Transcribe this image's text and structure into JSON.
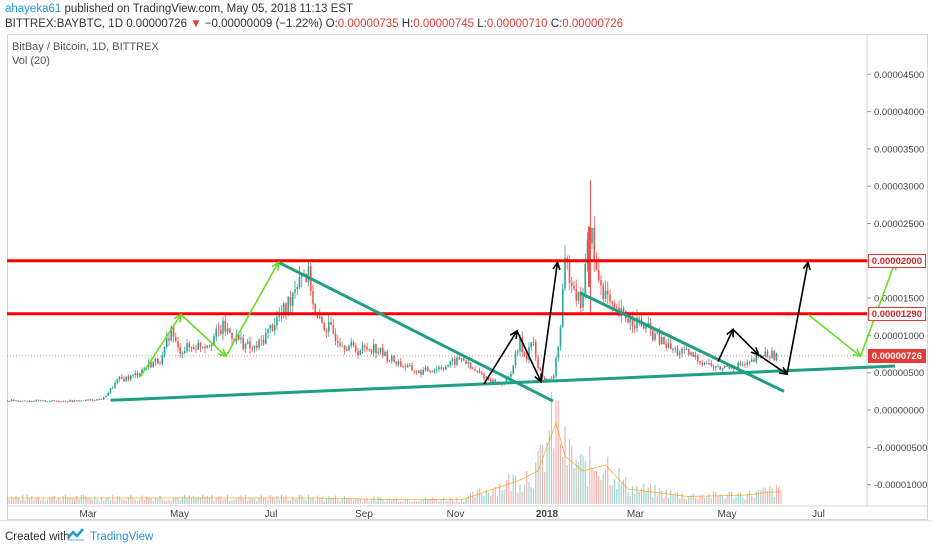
{
  "header": {
    "author": "ahayeka61",
    "published": "published on TradingView.com, May 05, 2018 11:13 EST",
    "symbol": "BITTREX:BAYBTC, 1D",
    "last": "0.00000726",
    "arrow": "▼",
    "change": "−0.00000009 (−1.22%)",
    "o_label": "O:",
    "o_val": "0.00000735",
    "h_label": "H:",
    "h_val": "0.00000745",
    "l_label": "L:",
    "l_val": "0.00000710",
    "c_label": "C:",
    "c_val": "0.00000726"
  },
  "legend": {
    "title": "BitBay / Bitcoin, 1D, BITTREX",
    "volume": "Vol (20)"
  },
  "footer": {
    "created": "Created with",
    "brand": "TradingView"
  },
  "colors": {
    "up": "#26a69a",
    "down": "#ef5350",
    "resistance": "#ff0000",
    "trendline": "#1fa083",
    "green_arrow": "#66dd22",
    "black_arrow": "#000000",
    "tag": "#e53935"
  },
  "chart_data": {
    "type": "candlestick",
    "title": "BitBay / Bitcoin, 1D, BITTREX",
    "y_axis": {
      "min": -1.2e-06,
      "max": 4.8e-06,
      "ticks": [
        "0.00004500",
        "0.00004000",
        "0.00003500",
        "0.00003000",
        "0.00002500",
        "0.00002000",
        "0.00001500",
        "0.00001000",
        "0.00000500",
        "0.00000000",
        "-0.00000500",
        "-0.00001000"
      ],
      "tick_values": [
        4.5e-05,
        4e-05,
        3.5e-05,
        3e-05,
        2.5e-05,
        2e-05,
        1.5e-05,
        1e-05,
        5e-06,
        0,
        -5e-06,
        -1e-05
      ]
    },
    "x_axis": {
      "labels": [
        "Mar",
        "May",
        "Jul",
        "Sep",
        "Nov",
        "2018",
        "Mar",
        "May",
        "Jul"
      ],
      "label_days": [
        0,
        61,
        122,
        184,
        245,
        306,
        365,
        426,
        487
      ]
    },
    "price_path": [
      [
        -60,
        1.3e-06
      ],
      [
        -30,
        1.2e-06
      ],
      [
        -10,
        1.2e-06
      ],
      [
        0,
        1.3e-06
      ],
      [
        10,
        1.5e-06
      ],
      [
        20,
        4e-06
      ],
      [
        30,
        4.5e-06
      ],
      [
        40,
        6e-06
      ],
      [
        50,
        7e-06
      ],
      [
        55,
        1.1e-05
      ],
      [
        60,
        8e-06
      ],
      [
        70,
        8.5e-06
      ],
      [
        80,
        9e-06
      ],
      [
        90,
        1.1e-05
      ],
      [
        100,
        9.5e-06
      ],
      [
        110,
        8e-06
      ],
      [
        115,
        9e-06
      ],
      [
        125,
        1.2e-05
      ],
      [
        132,
        1.35e-05
      ],
      [
        142,
        1.9e-05
      ],
      [
        148,
        1.75e-05
      ],
      [
        152,
        1.2e-05
      ],
      [
        160,
        1.1e-05
      ],
      [
        170,
        9e-06
      ],
      [
        180,
        8e-06
      ],
      [
        190,
        8.5e-06
      ],
      [
        200,
        7e-06
      ],
      [
        210,
        6e-06
      ],
      [
        220,
        5e-06
      ],
      [
        230,
        5.5e-06
      ],
      [
        240,
        6e-06
      ],
      [
        250,
        7e-06
      ],
      [
        255,
        5.5e-06
      ],
      [
        260,
        5e-06
      ],
      [
        268,
        4e-06
      ],
      [
        275,
        3.5e-06
      ],
      [
        280,
        4e-06
      ],
      [
        288,
        9e-06
      ],
      [
        292,
        7e-06
      ],
      [
        296,
        9.5e-06
      ],
      [
        300,
        5.5e-06
      ],
      [
        305,
        4e-06
      ],
      [
        310,
        4e-06
      ],
      [
        315,
        1.1e-05
      ],
      [
        318,
        1.9e-05
      ],
      [
        322,
        1.85e-05
      ],
      [
        328,
        1.4e-05
      ],
      [
        330,
        1.6e-05
      ],
      [
        335,
        2.5e-05
      ],
      [
        338,
        1.9e-05
      ],
      [
        344,
        1.6e-05
      ],
      [
        350,
        1.3e-05
      ],
      [
        358,
        1.25e-05
      ],
      [
        365,
        1.2e-05
      ],
      [
        372,
        1.1e-05
      ],
      [
        380,
        9.5e-06
      ],
      [
        390,
        8e-06
      ],
      [
        400,
        7.5e-06
      ],
      [
        410,
        6.5e-06
      ],
      [
        420,
        5.5e-06
      ],
      [
        430,
        6e-06
      ],
      [
        440,
        6e-06
      ],
      [
        450,
        7.5e-06
      ],
      [
        460,
        7.26e-06
      ]
    ],
    "volume_path": [
      [
        150,
        0.4
      ],
      [
        200,
        0.3
      ],
      [
        250,
        0.3
      ],
      [
        288,
        1.6
      ],
      [
        300,
        2.2
      ],
      [
        312,
        5.4
      ],
      [
        318,
        3.2
      ],
      [
        330,
        2.2
      ],
      [
        345,
        2.6
      ],
      [
        360,
        1.0
      ],
      [
        400,
        0.5
      ],
      [
        440,
        0.6
      ],
      [
        455,
        0.8
      ]
    ],
    "horizontal_levels": [
      {
        "value": 2e-05,
        "label": "0.00002000"
      },
      {
        "value": 1.29e-05,
        "label": "0.00001290"
      }
    ],
    "current_price": {
      "value": 7.26e-06,
      "label": "0.00000726"
    },
    "trendlines": [
      {
        "name": "rising support",
        "from": [
          15,
          1.3e-06
        ],
        "to": [
          538,
          5.9e-06
        ]
      },
      {
        "name": "falling resistance 1",
        "from": [
          127,
          1.98e-05
        ],
        "to": [
          310,
          1.2e-06
        ]
      },
      {
        "name": "falling resistance 2",
        "from": [
          328,
          1.57e-05
        ],
        "to": [
          464,
          2.5e-06
        ]
      }
    ],
    "arrows": [
      {
        "color": "green",
        "points": [
          [
            35,
            4.5e-06
          ],
          [
            62,
            1.28e-05
          ],
          [
            92,
            7.2e-06
          ],
          [
            127,
            1.98e-05
          ]
        ]
      },
      {
        "color": "black",
        "points": [
          [
            264,
            3.5e-06
          ],
          [
            286,
            1.06e-05
          ],
          [
            302,
            3.8e-06
          ],
          [
            313,
            1.98e-05
          ]
        ]
      },
      {
        "color": "black",
        "points": [
          [
            420,
            6.5e-06
          ],
          [
            430,
            1.08e-05
          ],
          [
            447,
            7.4e-06
          ],
          [
            466,
            4.8e-06
          ],
          [
            480,
            1.98e-05
          ]
        ]
      },
      {
        "color": "green",
        "points": [
          [
            480,
            1.28e-05
          ],
          [
            515,
            7.2e-06
          ],
          [
            538,
            1.98e-05
          ]
        ]
      }
    ]
  }
}
